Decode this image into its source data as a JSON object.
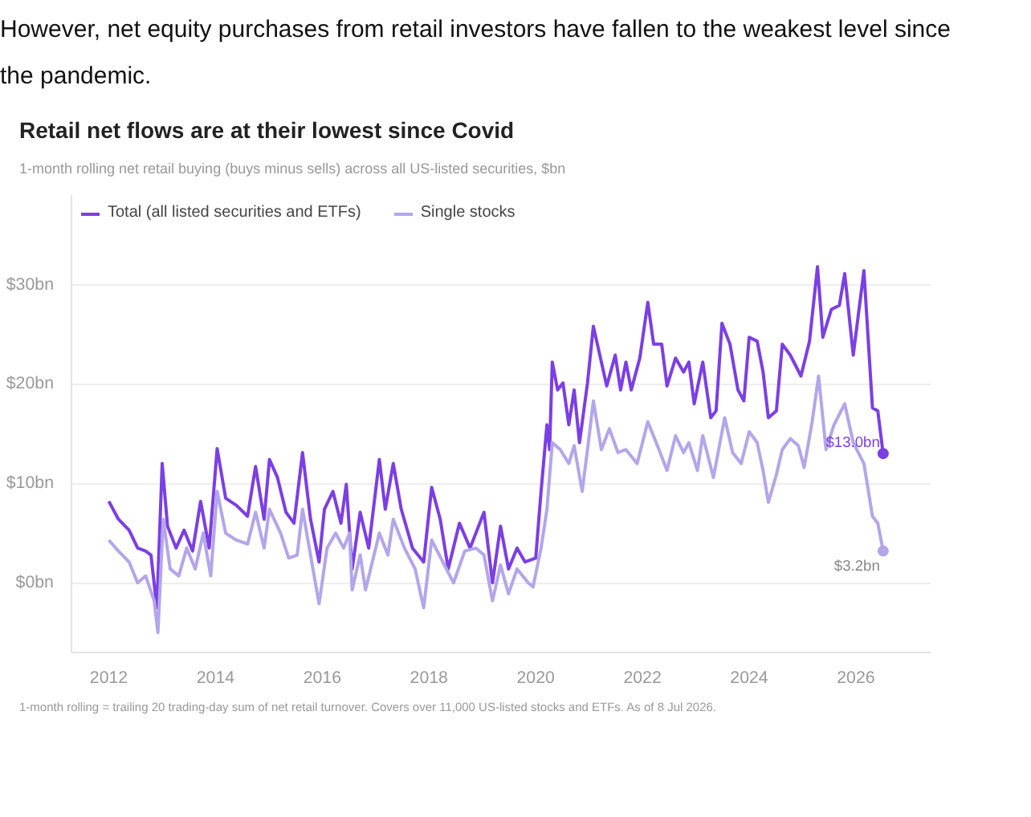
{
  "chart_data": {
    "type": "line",
    "title": "Retail net flows are at their lowest since Covid",
    "subtitle": "1-month rolling net retail buying (buys minus sells) across all US-listed securities, $bn",
    "xlim": [
      2011.3,
      2027.4
    ],
    "xticks": [
      2012,
      2014,
      2016,
      2018,
      2020,
      2022,
      2024,
      2026
    ],
    "ylim": [
      -7,
      39
    ],
    "yticks": [
      {
        "value": 0,
        "label": "$0bn"
      },
      {
        "value": 10,
        "label": "$10bn"
      },
      {
        "value": 20,
        "label": "$20bn"
      },
      {
        "value": 30,
        "label": "$30bn"
      }
    ],
    "grid": "y",
    "legend": "top left",
    "line_style": "solid",
    "marker": "none",
    "series": [
      {
        "name": "Total (all listed securities and ETFs)",
        "color": "#7b3fe4",
        "x": [
          2012.0,
          2012.18,
          2012.38,
          2012.54,
          2012.69,
          2012.79,
          2012.9,
          2013.0,
          2013.1,
          2013.26,
          2013.41,
          2013.57,
          2013.72,
          2013.88,
          2014.03,
          2014.19,
          2014.39,
          2014.6,
          2014.75,
          2014.91,
          2015.01,
          2015.16,
          2015.32,
          2015.47,
          2015.63,
          2015.78,
          2015.94,
          2016.04,
          2016.2,
          2016.35,
          2016.45,
          2016.56,
          2016.71,
          2016.87,
          2017.07,
          2017.18,
          2017.33,
          2017.48,
          2017.69,
          2017.9,
          2018.05,
          2018.21,
          2018.36,
          2018.57,
          2018.77,
          2019.03,
          2019.19,
          2019.34,
          2019.49,
          2019.65,
          2019.8,
          2020.0,
          2020.1,
          2020.21,
          2020.26,
          2020.31,
          2020.41,
          2020.51,
          2020.62,
          2020.72,
          2020.82,
          2020.97,
          2021.08,
          2021.23,
          2021.33,
          2021.49,
          2021.59,
          2021.69,
          2021.79,
          2021.95,
          2022.1,
          2022.21,
          2022.36,
          2022.46,
          2022.62,
          2022.77,
          2022.87,
          2022.97,
          2023.13,
          2023.28,
          2023.38,
          2023.49,
          2023.64,
          2023.79,
          2023.9,
          2024.0,
          2024.15,
          2024.26,
          2024.36,
          2024.51,
          2024.62,
          2024.77,
          2024.97,
          2025.13,
          2025.28,
          2025.38,
          2025.54,
          2025.69,
          2025.79,
          2025.95,
          2026.15,
          2026.31,
          2026.41,
          2026.51
        ],
        "values": [
          8.2,
          6.4,
          5.3,
          3.5,
          3.2,
          2.8,
          -2.5,
          12,
          5.7,
          3.5,
          5.3,
          3.2,
          8.2,
          3.5,
          13.5,
          8.5,
          7.8,
          6.7,
          11.7,
          6.4,
          12.4,
          10.6,
          7.1,
          6,
          13.1,
          6.4,
          2.1,
          7.4,
          9.2,
          6,
          9.9,
          1.4,
          7.1,
          3.5,
          12.4,
          7.4,
          12,
          7.4,
          3.5,
          2.1,
          9.6,
          6.4,
          1.4,
          6,
          3.5,
          7.1,
          0,
          5.7,
          1.4,
          3.5,
          2.1,
          2.5,
          9.2,
          15.9,
          13.4,
          22.2,
          19.4,
          20.1,
          15.9,
          19.4,
          14.1,
          20.1,
          25.8,
          22.2,
          19.8,
          22.9,
          19.4,
          22.2,
          19.4,
          22.6,
          28.2,
          24,
          24,
          19.8,
          22.6,
          21.2,
          22.2,
          18,
          22.2,
          16.6,
          17.3,
          26.1,
          24,
          19.4,
          18.3,
          24.7,
          24.3,
          21.2,
          16.6,
          17.3,
          24,
          22.9,
          20.8,
          24.3,
          31.8,
          24.7,
          27.5,
          27.9,
          31.1,
          22.9,
          31.4,
          17.6,
          17.3,
          13.0
        ]
      },
      {
        "name": "Single stocks",
        "color": "#b3a6ea",
        "x": [
          2012.0,
          2012.18,
          2012.38,
          2012.54,
          2012.69,
          2012.85,
          2012.92,
          2013.02,
          2013.15,
          2013.31,
          2013.46,
          2013.62,
          2013.77,
          2013.91,
          2014.03,
          2014.19,
          2014.39,
          2014.6,
          2014.75,
          2014.91,
          2015.01,
          2015.22,
          2015.37,
          2015.53,
          2015.63,
          2015.78,
          2015.94,
          2016.09,
          2016.25,
          2016.4,
          2016.51,
          2016.56,
          2016.71,
          2016.81,
          2017.07,
          2017.23,
          2017.33,
          2017.54,
          2017.74,
          2017.9,
          2018.05,
          2018.26,
          2018.46,
          2018.67,
          2018.88,
          2019.03,
          2019.19,
          2019.34,
          2019.49,
          2019.65,
          2019.86,
          2019.95,
          2020.1,
          2020.21,
          2020.31,
          2020.46,
          2020.62,
          2020.72,
          2020.87,
          2020.97,
          2021.08,
          2021.23,
          2021.38,
          2021.54,
          2021.69,
          2021.9,
          2022.1,
          2022.31,
          2022.46,
          2022.62,
          2022.77,
          2022.87,
          2023.03,
          2023.13,
          2023.33,
          2023.54,
          2023.69,
          2023.85,
          2024.0,
          2024.15,
          2024.26,
          2024.36,
          2024.51,
          2024.62,
          2024.77,
          2024.92,
          2025.03,
          2025.18,
          2025.3,
          2025.44,
          2025.59,
          2025.79,
          2025.95,
          2026.15,
          2026.31,
          2026.41,
          2026.51
        ],
        "values": [
          4.3,
          3.2,
          2.1,
          0,
          0.7,
          -1.8,
          -5.0,
          6.4,
          1.4,
          0.7,
          3.5,
          1.4,
          5,
          0.7,
          9.2,
          5,
          4.3,
          3.9,
          7.1,
          3.5,
          7.4,
          5,
          2.5,
          2.8,
          7.4,
          2.8,
          -2.1,
          3.5,
          5,
          3.5,
          5,
          -0.7,
          2.8,
          -0.7,
          5,
          2.8,
          6.4,
          3.5,
          1.4,
          -2.5,
          4.3,
          2.1,
          0,
          3.2,
          3.5,
          2.8,
          -1.8,
          1.8,
          -1.1,
          1.4,
          0,
          -0.4,
          3.5,
          7.4,
          14.1,
          13.4,
          12,
          13.8,
          9.2,
          13.4,
          18.3,
          13.4,
          15.5,
          13.1,
          13.4,
          12,
          16.2,
          13.4,
          11.3,
          14.8,
          13.1,
          14.1,
          11.3,
          14.8,
          10.6,
          16.6,
          13.1,
          12,
          15.2,
          14.1,
          11.3,
          8.1,
          10.9,
          13.4,
          14.5,
          13.8,
          11.6,
          16.2,
          20.8,
          13.4,
          15.9,
          18,
          14.1,
          12,
          6.7,
          6.0,
          3.2
        ]
      }
    ],
    "annotations": [
      "However, net equity purchases from retail investors have fallen to the weakest level since the pandemic.",
      {
        "text": "$13.0bn",
        "x": 2026.51,
        "y": 13.0
      },
      {
        "text": "$3.2bn",
        "x": 2026.51,
        "y": 3.2
      },
      "1-month rolling = trailing 20 trading-day sum of net retail turnover. Covers over 11,000 US-listed stocks and ETFs. As of 8 Jul 2026."
    ]
  }
}
